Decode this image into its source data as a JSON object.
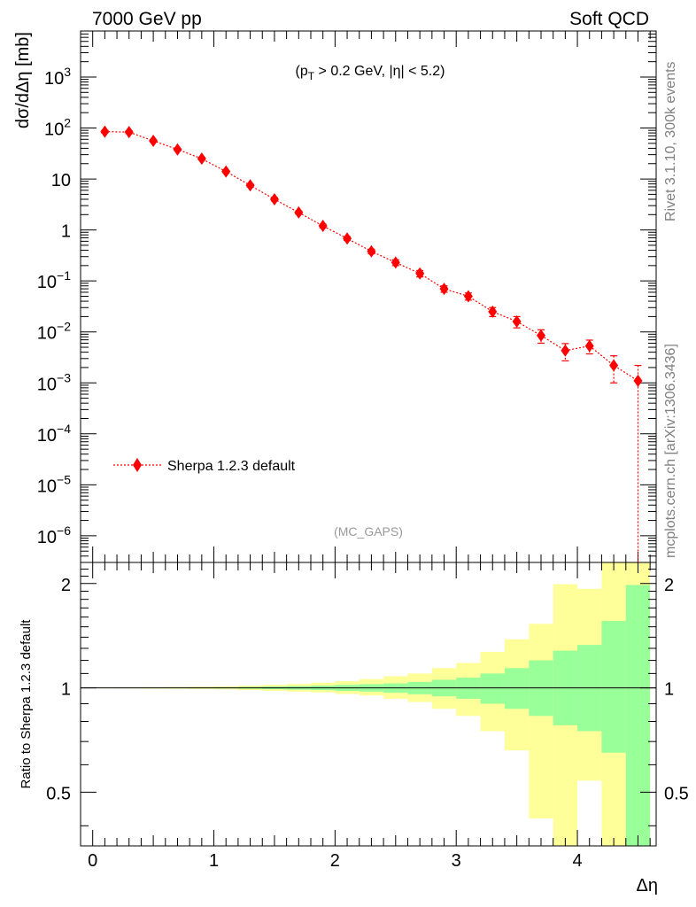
{
  "header": {
    "left": "7000 GeV pp",
    "right": "Soft QCD",
    "cut_label": "(p_T > 0.2 GeV, |η| < 5.2)",
    "watermark": "(MC_GAPS)",
    "side_top": "Rivet 3.1.10,  300k events",
    "side_bottom": "mcplots.cern.ch [arXiv:1306.3436]"
  },
  "legend": {
    "label": "Sherpa 1.2.3 default",
    "color": "#ff0000"
  },
  "colors": {
    "series": "#ff0000",
    "band_stat": "#99ff99",
    "band_total": "#ffff99"
  },
  "chart_data": [
    {
      "type": "scatter",
      "title": "",
      "ylabel": "dσ/dΔη [mb]",
      "xlabel": "Δη",
      "xlim": [
        -0.1,
        4.65
      ],
      "ylim": [
        3e-07,
        8000
      ],
      "yscale": "log",
      "grid": false,
      "legend_position": "lower-left",
      "y_ticks": [
        "10^-6",
        "10^-5",
        "10^-4",
        "10^-3",
        "10^-2",
        "10^-1",
        "1",
        "10",
        "10^2",
        "10^3"
      ],
      "series": [
        {
          "name": "Sherpa 1.2.3 default",
          "x": [
            0.1,
            0.3,
            0.5,
            0.7,
            0.9,
            1.1,
            1.3,
            1.5,
            1.7,
            1.9,
            2.1,
            2.3,
            2.5,
            2.7,
            2.9,
            3.1,
            3.3,
            3.5,
            3.7,
            3.9,
            4.1,
            4.3,
            4.5
          ],
          "y": [
            85,
            83,
            56,
            38,
            25,
            14,
            7.5,
            4.0,
            2.2,
            1.2,
            0.68,
            0.38,
            0.23,
            0.14,
            0.07,
            0.05,
            0.025,
            0.016,
            0.0085,
            0.0043,
            0.0053,
            0.0022,
            0.0011
          ],
          "ylow": [
            80,
            78,
            53,
            36,
            23.5,
            13.2,
            7.0,
            3.7,
            2.05,
            1.1,
            0.62,
            0.34,
            0.2,
            0.12,
            0.06,
            0.042,
            0.02,
            0.012,
            0.006,
            0.0027,
            0.0037,
            0.001,
            1e-07
          ],
          "yhigh": [
            90,
            88,
            59,
            40,
            26.5,
            14.8,
            8.0,
            4.3,
            2.35,
            1.3,
            0.74,
            0.42,
            0.26,
            0.16,
            0.08,
            0.058,
            0.03,
            0.02,
            0.011,
            0.0059,
            0.0069,
            0.0034,
            0.0022
          ]
        }
      ]
    },
    {
      "type": "area",
      "title": "",
      "ylabel": "Ratio to Sherpa 1.2.3 default",
      "xlabel": "Δη",
      "xlim": [
        -0.1,
        4.65
      ],
      "ylim": [
        0.35,
        2.3
      ],
      "y_ticks": [
        "0.5",
        "1",
        "2"
      ],
      "x_ticks": [
        "0",
        "1",
        "2",
        "3",
        "4"
      ],
      "bin_edges": [
        0.0,
        0.2,
        0.4,
        0.6,
        0.8,
        1.0,
        1.2,
        1.4,
        1.6,
        1.8,
        2.0,
        2.2,
        2.4,
        2.6,
        2.8,
        3.0,
        3.2,
        3.4,
        3.6,
        3.8,
        4.0,
        4.2,
        4.4,
        4.6
      ],
      "series": [
        {
          "name": "stat",
          "lo": [
            0.999,
            0.999,
            0.998,
            0.998,
            0.997,
            0.996,
            0.994,
            0.991,
            0.988,
            0.985,
            0.98,
            0.975,
            0.968,
            0.958,
            0.945,
            0.93,
            0.9,
            0.87,
            0.83,
            0.78,
            0.75,
            0.65,
            0.35
          ],
          "hi": [
            1.001,
            1.001,
            1.002,
            1.002,
            1.003,
            1.004,
            1.006,
            1.009,
            1.012,
            1.015,
            1.02,
            1.025,
            1.03,
            1.04,
            1.055,
            1.07,
            1.1,
            1.14,
            1.2,
            1.28,
            1.33,
            1.56,
            1.98
          ]
        },
        {
          "name": "total",
          "lo": [
            0.998,
            0.997,
            0.995,
            0.994,
            0.992,
            0.99,
            0.985,
            0.98,
            0.975,
            0.97,
            0.96,
            0.95,
            0.93,
            0.91,
            0.87,
            0.83,
            0.75,
            0.66,
            0.42,
            0.35,
            0.54,
            0.35,
            0.35
          ],
          "hi": [
            1.002,
            1.003,
            1.005,
            1.006,
            1.008,
            1.01,
            1.015,
            1.02,
            1.026,
            1.035,
            1.045,
            1.06,
            1.08,
            1.1,
            1.14,
            1.18,
            1.27,
            1.38,
            1.53,
            1.99,
            1.93,
            2.3,
            2.3
          ]
        }
      ]
    }
  ]
}
